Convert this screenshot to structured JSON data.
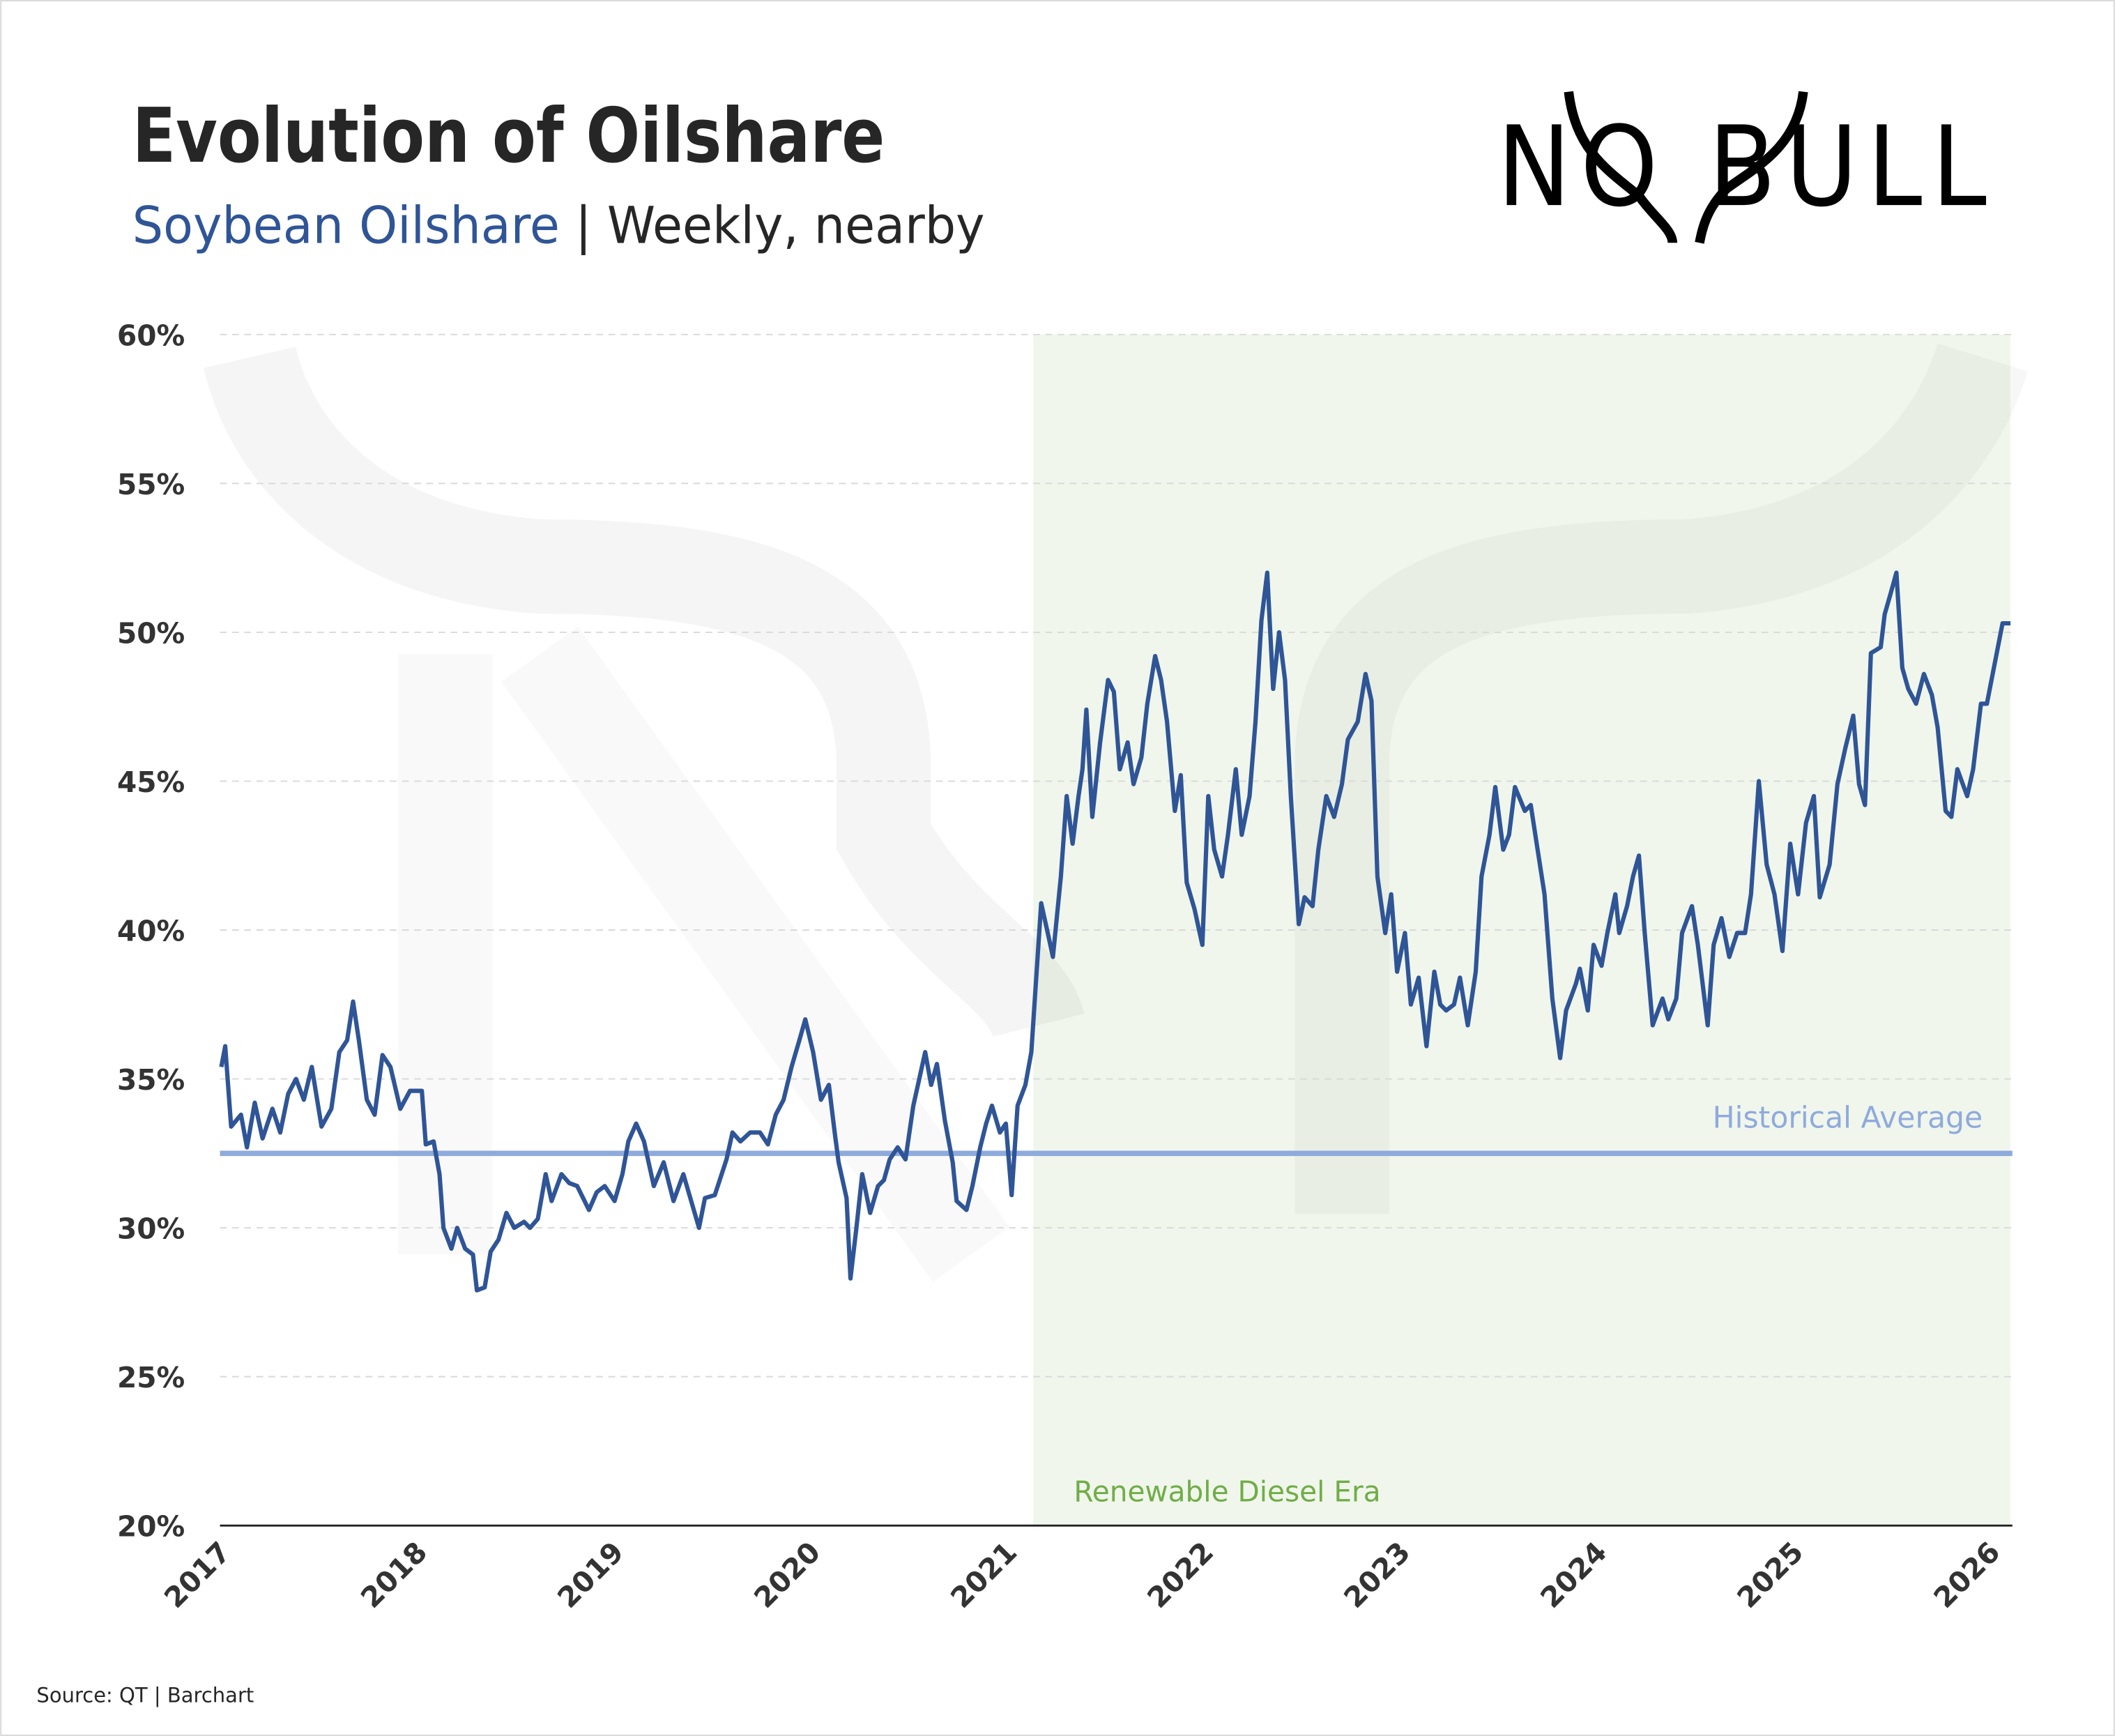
{
  "title": "Evolution of Oilshare",
  "subtitle_series": "Soybean Oilshare",
  "subtitle_sep": " | ",
  "subtitle_rest": "Weekly, nearby",
  "logo_text": "NO BULL",
  "source": "Source: QT | Barchart",
  "colors": {
    "line": "#2f5597",
    "average": "#8faadc",
    "era_fill": "#f0f6ec",
    "era_text": "#70ad47",
    "title": "#262626",
    "subtitle_series": "#2f5597"
  },
  "chart_data": {
    "type": "line",
    "title": "Evolution of Oilshare",
    "subtitle": "Soybean Oilshare | Weekly, nearby",
    "xlabel": "",
    "ylabel": "",
    "xlim": [
      2017,
      2026.1
    ],
    "ylim": [
      20,
      60
    ],
    "yticks": [
      20,
      25,
      30,
      35,
      40,
      45,
      50,
      55,
      60
    ],
    "ytick_labels": [
      "20%",
      "25%",
      "30%",
      "35%",
      "40%",
      "45%",
      "50%",
      "55%",
      "60%"
    ],
    "xticks": [
      2017,
      2018,
      2019,
      2020,
      2021,
      2022,
      2023,
      2024,
      2025,
      2026
    ],
    "xtick_labels": [
      "2017",
      "2018",
      "2019",
      "2020",
      "2021",
      "2022",
      "2023",
      "2024",
      "2025",
      "2026"
    ],
    "grid": "horizontal dashed",
    "series": [
      {
        "points": [
          [
            2017.0,
            35.4
          ],
          [
            2017.02,
            36.1
          ],
          [
            2017.05,
            33.4
          ],
          [
            2017.1,
            33.8
          ],
          [
            2017.13,
            32.7
          ],
          [
            2017.17,
            34.2
          ],
          [
            2017.21,
            33.0
          ],
          [
            2017.26,
            34.0
          ],
          [
            2017.3,
            33.2
          ],
          [
            2017.34,
            34.5
          ],
          [
            2017.38,
            35.0
          ],
          [
            2017.42,
            34.3
          ],
          [
            2017.46,
            35.4
          ],
          [
            2017.51,
            33.4
          ],
          [
            2017.56,
            34.0
          ],
          [
            2017.6,
            35.9
          ],
          [
            2017.64,
            36.3
          ],
          [
            2017.67,
            37.6
          ],
          [
            2017.7,
            36.3
          ],
          [
            2017.74,
            34.3
          ],
          [
            2017.78,
            33.8
          ],
          [
            2017.82,
            35.8
          ],
          [
            2017.86,
            35.4
          ],
          [
            2017.91,
            34.0
          ],
          [
            2017.96,
            34.6
          ],
          [
            2018.02,
            34.6
          ],
          [
            2018.04,
            32.8
          ],
          [
            2018.08,
            32.9
          ],
          [
            2018.11,
            31.8
          ],
          [
            2018.13,
            30.0
          ],
          [
            2018.17,
            29.3
          ],
          [
            2018.2,
            30.0
          ],
          [
            2018.24,
            29.3
          ],
          [
            2018.28,
            29.1
          ],
          [
            2018.3,
            27.9
          ],
          [
            2018.34,
            28.0
          ],
          [
            2018.37,
            29.2
          ],
          [
            2018.41,
            29.6
          ],
          [
            2018.45,
            30.5
          ],
          [
            2018.49,
            30.0
          ],
          [
            2018.54,
            30.2
          ],
          [
            2018.57,
            30.0
          ],
          [
            2018.61,
            30.3
          ],
          [
            2018.65,
            31.8
          ],
          [
            2018.68,
            30.9
          ],
          [
            2018.73,
            31.8
          ],
          [
            2018.77,
            31.5
          ],
          [
            2018.81,
            31.4
          ],
          [
            2018.87,
            30.6
          ],
          [
            2018.91,
            31.2
          ],
          [
            2018.95,
            31.4
          ],
          [
            2019.0,
            30.9
          ],
          [
            2019.04,
            31.8
          ],
          [
            2019.07,
            32.9
          ],
          [
            2019.11,
            33.5
          ],
          [
            2019.15,
            32.9
          ],
          [
            2019.2,
            31.4
          ],
          [
            2019.25,
            32.2
          ],
          [
            2019.3,
            30.9
          ],
          [
            2019.35,
            31.8
          ],
          [
            2019.39,
            30.9
          ],
          [
            2019.43,
            30.0
          ],
          [
            2019.46,
            31.0
          ],
          [
            2019.51,
            31.1
          ],
          [
            2019.57,
            32.3
          ],
          [
            2019.6,
            33.2
          ],
          [
            2019.64,
            32.9
          ],
          [
            2019.69,
            33.2
          ],
          [
            2019.74,
            33.2
          ],
          [
            2019.78,
            32.8
          ],
          [
            2019.82,
            33.8
          ],
          [
            2019.86,
            34.3
          ],
          [
            2019.9,
            35.4
          ],
          [
            2019.94,
            36.3
          ],
          [
            2019.97,
            37.0
          ],
          [
            2020.01,
            35.9
          ],
          [
            2020.05,
            34.3
          ],
          [
            2020.09,
            34.8
          ],
          [
            2020.12,
            33.2
          ],
          [
            2020.14,
            32.2
          ],
          [
            2020.18,
            31.0
          ],
          [
            2020.2,
            28.3
          ],
          [
            2020.23,
            30.0
          ],
          [
            2020.26,
            31.8
          ],
          [
            2020.3,
            30.5
          ],
          [
            2020.34,
            31.4
          ],
          [
            2020.37,
            31.6
          ],
          [
            2020.4,
            32.3
          ],
          [
            2020.44,
            32.7
          ],
          [
            2020.48,
            32.3
          ],
          [
            2020.52,
            34.1
          ],
          [
            2020.55,
            35.0
          ],
          [
            2020.58,
            35.9
          ],
          [
            2020.61,
            34.8
          ],
          [
            2020.64,
            35.5
          ],
          [
            2020.68,
            33.6
          ],
          [
            2020.72,
            32.2
          ],
          [
            2020.74,
            30.9
          ],
          [
            2020.79,
            30.6
          ],
          [
            2020.82,
            31.4
          ],
          [
            2020.86,
            32.7
          ],
          [
            2020.89,
            33.5
          ],
          [
            2020.92,
            34.1
          ],
          [
            2020.96,
            33.2
          ],
          [
            2020.99,
            33.5
          ],
          [
            2021.02,
            31.1
          ],
          [
            2021.05,
            34.1
          ],
          [
            2021.09,
            34.8
          ],
          [
            2021.12,
            35.9
          ],
          [
            2021.14,
            37.9
          ],
          [
            2021.17,
            40.9
          ],
          [
            2021.2,
            40.0
          ],
          [
            2021.23,
            39.1
          ],
          [
            2021.27,
            41.8
          ],
          [
            2021.3,
            44.5
          ],
          [
            2021.33,
            42.9
          ],
          [
            2021.36,
            44.5
          ],
          [
            2021.38,
            45.4
          ],
          [
            2021.4,
            47.4
          ],
          [
            2021.43,
            43.8
          ],
          [
            2021.47,
            46.3
          ],
          [
            2021.51,
            48.4
          ],
          [
            2021.54,
            48.0
          ],
          [
            2021.57,
            45.4
          ],
          [
            2021.61,
            46.3
          ],
          [
            2021.64,
            44.9
          ],
          [
            2021.68,
            45.8
          ],
          [
            2021.71,
            47.6
          ],
          [
            2021.75,
            49.2
          ],
          [
            2021.78,
            48.4
          ],
          [
            2021.81,
            47.0
          ],
          [
            2021.85,
            44.0
          ],
          [
            2021.88,
            45.2
          ],
          [
            2021.91,
            41.6
          ],
          [
            2021.95,
            40.7
          ],
          [
            2021.99,
            39.5
          ],
          [
            2022.02,
            44.5
          ],
          [
            2022.05,
            42.7
          ],
          [
            2022.09,
            41.8
          ],
          [
            2022.12,
            43.2
          ],
          [
            2022.16,
            45.4
          ],
          [
            2022.19,
            43.2
          ],
          [
            2022.23,
            44.5
          ],
          [
            2022.26,
            47.0
          ],
          [
            2022.29,
            50.4
          ],
          [
            2022.32,
            52.0
          ],
          [
            2022.35,
            48.1
          ],
          [
            2022.38,
            50.0
          ],
          [
            2022.41,
            48.4
          ],
          [
            2022.44,
            44.5
          ],
          [
            2022.48,
            40.2
          ],
          [
            2022.51,
            41.1
          ],
          [
            2022.55,
            40.8
          ],
          [
            2022.58,
            42.7
          ],
          [
            2022.62,
            44.5
          ],
          [
            2022.66,
            43.8
          ],
          [
            2022.7,
            44.9
          ],
          [
            2022.73,
            46.4
          ],
          [
            2022.78,
            47.0
          ],
          [
            2022.82,
            48.6
          ],
          [
            2022.85,
            47.7
          ],
          [
            2022.88,
            41.8
          ],
          [
            2022.92,
            39.9
          ],
          [
            2022.95,
            41.2
          ],
          [
            2022.98,
            38.6
          ],
          [
            2023.02,
            39.9
          ],
          [
            2023.05,
            37.5
          ],
          [
            2023.09,
            38.4
          ],
          [
            2023.13,
            36.1
          ],
          [
            2023.17,
            38.6
          ],
          [
            2023.2,
            37.5
          ],
          [
            2023.23,
            37.3
          ],
          [
            2023.27,
            37.5
          ],
          [
            2023.3,
            38.4
          ],
          [
            2023.34,
            36.8
          ],
          [
            2023.38,
            38.6
          ],
          [
            2023.41,
            41.8
          ],
          [
            2023.45,
            43.2
          ],
          [
            2023.48,
            44.8
          ],
          [
            2023.52,
            42.7
          ],
          [
            2023.55,
            43.2
          ],
          [
            2023.58,
            44.8
          ],
          [
            2023.63,
            44.0
          ],
          [
            2023.66,
            44.2
          ],
          [
            2023.69,
            42.9
          ],
          [
            2023.73,
            41.2
          ],
          [
            2023.77,
            37.7
          ],
          [
            2023.81,
            35.7
          ],
          [
            2023.84,
            37.3
          ],
          [
            2023.89,
            38.2
          ],
          [
            2023.91,
            38.7
          ],
          [
            2023.95,
            37.3
          ],
          [
            2023.98,
            39.5
          ],
          [
            2024.02,
            38.8
          ],
          [
            2024.05,
            39.9
          ],
          [
            2024.09,
            41.2
          ],
          [
            2024.11,
            39.9
          ],
          [
            2024.15,
            40.8
          ],
          [
            2024.18,
            41.8
          ],
          [
            2024.21,
            42.5
          ],
          [
            2024.24,
            39.9
          ],
          [
            2024.28,
            36.8
          ],
          [
            2024.33,
            37.7
          ],
          [
            2024.36,
            37.0
          ],
          [
            2024.4,
            37.7
          ],
          [
            2024.43,
            39.9
          ],
          [
            2024.48,
            40.8
          ],
          [
            2024.51,
            39.5
          ],
          [
            2024.56,
            36.8
          ],
          [
            2024.59,
            39.5
          ],
          [
            2024.63,
            40.4
          ],
          [
            2024.67,
            39.1
          ],
          [
            2024.71,
            39.9
          ],
          [
            2024.75,
            39.9
          ],
          [
            2024.78,
            41.2
          ],
          [
            2024.82,
            45.0
          ],
          [
            2024.86,
            42.2
          ],
          [
            2024.9,
            41.2
          ],
          [
            2024.94,
            39.3
          ],
          [
            2024.98,
            42.9
          ],
          [
            2025.02,
            41.2
          ],
          [
            2025.06,
            43.6
          ],
          [
            2025.1,
            44.5
          ],
          [
            2025.13,
            41.1
          ],
          [
            2025.18,
            42.2
          ],
          [
            2025.22,
            44.9
          ],
          [
            2025.26,
            46.1
          ],
          [
            2025.3,
            47.2
          ],
          [
            2025.33,
            44.9
          ],
          [
            2025.36,
            44.2
          ],
          [
            2025.39,
            49.3
          ],
          [
            2025.44,
            49.5
          ],
          [
            2025.46,
            50.6
          ],
          [
            2025.49,
            51.3
          ],
          [
            2025.52,
            52.0
          ],
          [
            2025.55,
            48.8
          ],
          [
            2025.58,
            48.1
          ],
          [
            2025.62,
            47.6
          ],
          [
            2025.66,
            48.6
          ],
          [
            2025.7,
            47.9
          ],
          [
            2025.73,
            46.8
          ],
          [
            2025.77,
            44.0
          ],
          [
            2025.8,
            43.8
          ],
          [
            2025.83,
            45.4
          ],
          [
            2025.88,
            44.5
          ],
          [
            2025.91,
            45.4
          ],
          [
            2025.95,
            47.6
          ],
          [
            2025.98,
            47.6
          ],
          [
            2026.03,
            49.3
          ],
          [
            2026.06,
            50.3
          ],
          [
            2026.1,
            50.3
          ]
        ]
      }
    ],
    "reference_line": {
      "label": "Historical Average",
      "value": 32.5
    },
    "shaded_region": {
      "label": "Renewable Diesel Era",
      "x_start": 2021.13,
      "x_end": 2026.1
    }
  }
}
